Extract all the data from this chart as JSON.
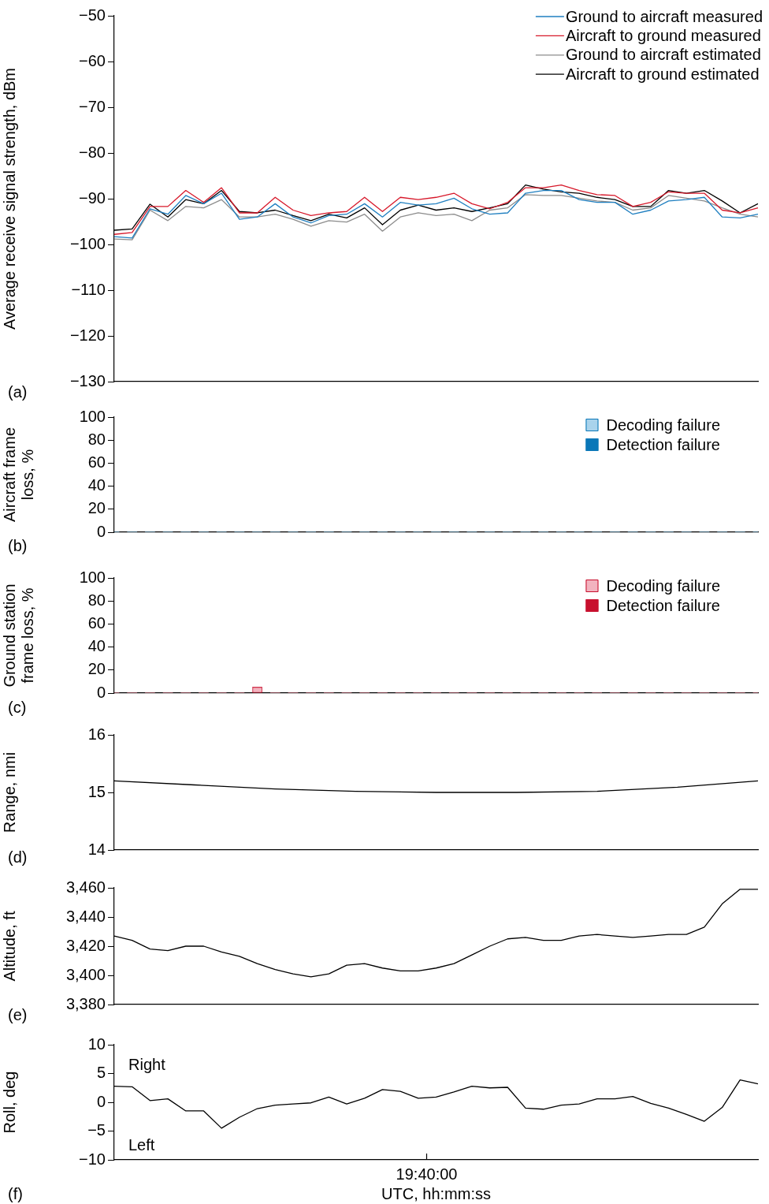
{
  "chart_data": [
    {
      "type": "line",
      "ylabel": "Average receive signal strength, dBm",
      "marker": "none",
      "legend": "top right",
      "grid": false,
      "annotations": [
        "(a)"
      ],
      "categories": [
        null,
        null,
        null,
        null,
        null,
        null,
        null,
        null,
        null,
        null,
        null,
        null,
        null,
        null,
        null,
        null,
        null,
        null,
        null,
        null,
        null,
        null,
        null,
        null,
        null,
        null,
        null,
        null,
        null,
        null,
        null,
        null,
        null,
        null,
        null,
        null,
        null
      ],
      "ylim": [
        -130,
        -50
      ],
      "yticks": [
        {
          "value": -130,
          "label": "−130"
        },
        {
          "value": -120,
          "label": "−120"
        },
        {
          "value": -110,
          "label": "−110"
        },
        {
          "value": -100,
          "label": "−100"
        },
        {
          "value": -90,
          "label": "−90"
        },
        {
          "value": -80,
          "label": "−80"
        },
        {
          "value": -70,
          "label": "−70"
        },
        {
          "value": -60,
          "label": "−60"
        },
        {
          "value": -50,
          "label": "−50"
        }
      ],
      "series": [
        {
          "name": "Ground to aircraft measured",
          "color": "#1f7fc0",
          "values": [
            -98.3,
            -98.6,
            -92.2,
            -93.4,
            -89.3,
            -91.1,
            -88.8,
            -94.5,
            -94,
            -91.1,
            -94,
            -95.3,
            -93.7,
            -93.4,
            -91.1,
            -94,
            -90.8,
            -91.4,
            -91.1,
            -89.9,
            -92.2,
            -93.4,
            -93.1,
            -88.8,
            -88.2,
            -88.2,
            -90.2,
            -90.8,
            -90.8,
            -93.4,
            -92.5,
            -90.5,
            -90.2,
            -89.7,
            -94,
            -94.2,
            -93.4
          ]
        },
        {
          "name": "Aircraft to ground measured",
          "color": "#d7182a",
          "values": [
            -97.8,
            -97.4,
            -91.7,
            -91.7,
            -88.2,
            -90.8,
            -87.6,
            -93.1,
            -93.1,
            -89.7,
            -92.5,
            -93.7,
            -93.1,
            -92.8,
            -89.7,
            -92.8,
            -89.7,
            -90.2,
            -89.7,
            -88.8,
            -91.1,
            -92.2,
            -90.8,
            -87.6,
            -87.6,
            -87,
            -88.2,
            -89.1,
            -89.3,
            -91.7,
            -90.8,
            -88.5,
            -88.8,
            -88.8,
            -92.5,
            -93.1,
            -92
          ]
        },
        {
          "name": "Ground to aircraft estimated",
          "color": "#8c8c8c",
          "values": [
            -98.8,
            -99,
            -92.5,
            -94.8,
            -91.7,
            -92,
            -90.2,
            -94,
            -94,
            -93.4,
            -94.5,
            -96,
            -94.8,
            -95.1,
            -93.4,
            -97.1,
            -94,
            -93.1,
            -93.7,
            -93.4,
            -94.8,
            -92.5,
            -92,
            -89.1,
            -89.3,
            -89.3,
            -89.9,
            -90.5,
            -90.8,
            -92.5,
            -92,
            -89.3,
            -89.9,
            -90.5,
            -92,
            -93.4,
            -94
          ]
        },
        {
          "name": "Aircraft to ground estimated",
          "color": "#000000",
          "values": [
            -96.9,
            -96.6,
            -91.2,
            -94,
            -90.2,
            -91.1,
            -88.2,
            -92.8,
            -93.1,
            -92.5,
            -93.7,
            -94.8,
            -93.4,
            -94.2,
            -92,
            -95.7,
            -92.5,
            -91.4,
            -92.5,
            -92,
            -92.8,
            -92,
            -91.1,
            -87,
            -87.9,
            -88.5,
            -88.8,
            -89.7,
            -90.2,
            -91.7,
            -91.7,
            -88.2,
            -88.8,
            -88.2,
            -90.5,
            -93.1,
            -91.1
          ]
        }
      ]
    },
    {
      "type": "bar",
      "ylabel": "Aircraft frame loss, %",
      "stacked": true,
      "legend": "top right",
      "grid": false,
      "annotations": [
        "(b)"
      ],
      "categories": [
        null,
        null,
        null,
        null,
        null,
        null,
        null,
        null,
        null,
        null,
        null,
        null,
        null,
        null,
        null,
        null,
        null,
        null,
        null,
        null,
        null,
        null,
        null,
        null,
        null,
        null,
        null,
        null,
        null,
        null,
        null,
        null,
        null,
        null,
        null,
        null,
        null
      ],
      "ylim": [
        0,
        100
      ],
      "yticks": [
        0,
        20,
        40,
        60,
        80,
        100
      ],
      "series": [
        {
          "name": "Decoding failure",
          "color": "#a9d3ec",
          "values": [
            0,
            0,
            0,
            0,
            0,
            0,
            0,
            0,
            0,
            0,
            0,
            0,
            0,
            0,
            0,
            0,
            0,
            0,
            0,
            0,
            0,
            0,
            0,
            0,
            0,
            0,
            0,
            0,
            0,
            0,
            0,
            0,
            0,
            0,
            0,
            0,
            0
          ]
        },
        {
          "name": "Detection failure",
          "color": "#0a77b8",
          "values": [
            0,
            0,
            0,
            0,
            0,
            0,
            0,
            0,
            0,
            0,
            0,
            0,
            0,
            0,
            0,
            0,
            0,
            0,
            0,
            0,
            0,
            0,
            0,
            0,
            0,
            0,
            0,
            0,
            0,
            0,
            0,
            0,
            0,
            0,
            0,
            0,
            0
          ]
        }
      ]
    },
    {
      "type": "bar",
      "ylabel": "Ground station frame loss, %",
      "stacked": true,
      "legend": "top right",
      "grid": false,
      "annotations": [
        "(c)"
      ],
      "categories": [
        null,
        null,
        null,
        null,
        null,
        null,
        null,
        null,
        null,
        null,
        null,
        null,
        null,
        null,
        null,
        null,
        null,
        null,
        null,
        null,
        null,
        null,
        null,
        null,
        null,
        null,
        null,
        null,
        null,
        null,
        null,
        null,
        null,
        null,
        null,
        null,
        null
      ],
      "ylim": [
        0,
        100
      ],
      "yticks": [
        0,
        20,
        40,
        60,
        80,
        100
      ],
      "series": [
        {
          "name": "Decoding failure",
          "color": "#f2b3bf",
          "values": [
            0,
            0,
            0,
            0,
            0,
            0,
            0,
            0,
            5,
            0,
            0,
            0,
            0,
            0,
            0,
            0,
            0,
            0,
            0,
            0,
            0,
            0,
            0,
            0,
            0,
            0,
            0,
            0,
            0,
            0,
            0,
            0,
            0,
            0,
            0,
            0,
            0
          ]
        },
        {
          "name": "Detection failure",
          "color": "#c8102e",
          "values": [
            0,
            0,
            0,
            0,
            0,
            0,
            0,
            0,
            0,
            0,
            0,
            0,
            0,
            0,
            0,
            0,
            0,
            0,
            0,
            0,
            0,
            0,
            0,
            0,
            0,
            0,
            0,
            0,
            0,
            0,
            0,
            0,
            0,
            0,
            0,
            0,
            0
          ]
        }
      ]
    },
    {
      "type": "line",
      "ylabel": "Range, nmi",
      "marker": "none",
      "grid": false,
      "annotations": [
        "(d)"
      ],
      "categories": [
        null,
        null,
        null,
        null,
        null,
        null,
        null,
        null,
        null
      ],
      "ylim": [
        14,
        16
      ],
      "yticks": [
        14,
        15,
        16
      ],
      "series": [
        {
          "color": "#000000",
          "values": [
            15.2,
            15.13,
            15.06,
            15.02,
            15.0,
            15.0,
            15.02,
            15.09,
            15.2
          ]
        }
      ]
    },
    {
      "type": "line",
      "ylabel": "Altitude, ft",
      "marker": "none",
      "grid": false,
      "annotations": [
        "(e)"
      ],
      "categories": [
        null,
        null,
        null,
        null,
        null,
        null,
        null,
        null,
        null,
        null,
        null,
        null,
        null,
        null,
        null,
        null,
        null,
        null,
        null,
        null,
        null,
        null,
        null,
        null,
        null,
        null,
        null,
        null,
        null,
        null,
        null,
        null,
        null,
        null,
        null,
        null,
        null
      ],
      "ylim": [
        3380,
        3460
      ],
      "yticks": [
        {
          "value": 3380,
          "label": "3,380"
        },
        {
          "value": 3400,
          "label": "3,400"
        },
        {
          "value": 3420,
          "label": "3,420"
        },
        {
          "value": 3440,
          "label": "3,440"
        },
        {
          "value": 3460,
          "label": "3,460"
        }
      ],
      "series": [
        {
          "color": "#000000",
          "values": [
            3427,
            3424,
            3418,
            3417,
            3420,
            3420,
            3416,
            3413,
            3408,
            3404,
            3401,
            3399,
            3401,
            3407,
            3408,
            3405,
            3403,
            3403,
            3405,
            3408,
            3414,
            3420,
            3425,
            3426,
            3424,
            3424,
            3427,
            3428,
            3427,
            3426,
            3427,
            3428,
            3428,
            3433,
            3449,
            3459,
            3459
          ]
        }
      ]
    },
    {
      "type": "line",
      "ylabel": "Roll, deg",
      "xlabel": "UTC, hh:mm:ss",
      "marker": "none",
      "grid": false,
      "annotations": [
        "(f)",
        "19:40:00",
        "Right",
        "Left"
      ],
      "categories": [
        null,
        null,
        null,
        null,
        null,
        null,
        null,
        null,
        null,
        null,
        null,
        null,
        null,
        null,
        null,
        null,
        null,
        null,
        null,
        null,
        null,
        null,
        null,
        null,
        null,
        null,
        null,
        null,
        null,
        null,
        null,
        null,
        null,
        null,
        null,
        null,
        null
      ],
      "ylim": [
        -10,
        10
      ],
      "yticks": [
        {
          "value": -10,
          "label": "−10"
        },
        {
          "value": -5,
          "label": "−5"
        },
        0,
        5,
        10
      ],
      "series": [
        {
          "color": "#000000",
          "values": [
            2.8,
            2.7,
            0.3,
            0.6,
            -1.5,
            -1.5,
            -4.5,
            -2.6,
            -1.1,
            -0.5,
            -0.3,
            -0.1,
            0.9,
            -0.3,
            0.7,
            2.2,
            1.9,
            0.7,
            0.9,
            1.8,
            2.8,
            2.5,
            2.6,
            -1.0,
            -1.2,
            -0.5,
            -0.3,
            0.6,
            0.6,
            1.0,
            -0.2,
            -1.0,
            -2.1,
            -3.3,
            -0.9,
            3.9,
            3.2
          ]
        }
      ]
    }
  ]
}
